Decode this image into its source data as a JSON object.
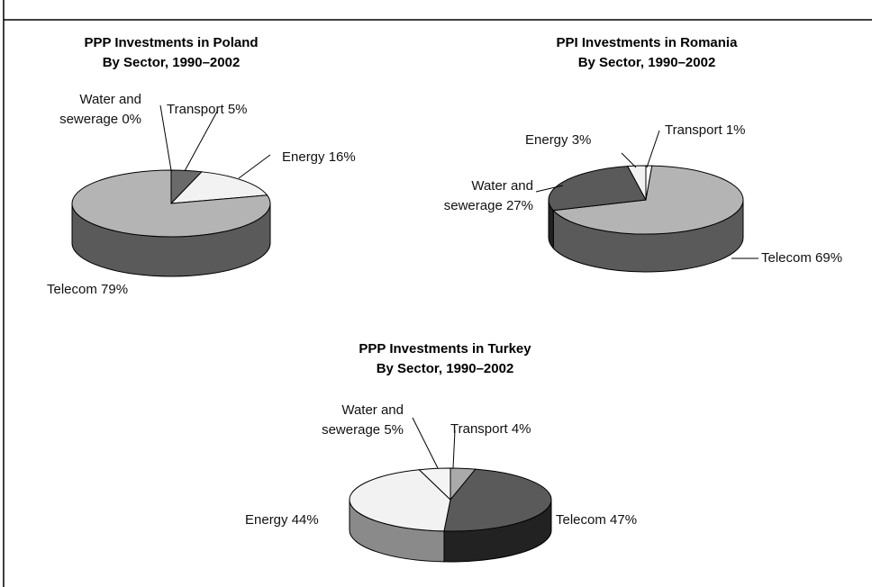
{
  "chart_data": [
    {
      "type": "pie",
      "title": "PPP Investments in Poland",
      "subtitle": "By Sector, 1990–2002",
      "categories": [
        "Water and sewerage",
        "Transport",
        "Energy",
        "Telecom"
      ],
      "values": [
        0,
        5,
        16,
        79
      ],
      "value_labels": [
        "0%",
        "5%",
        "16%",
        "79%"
      ],
      "colors": [
        "#f4f4f4",
        "#6a6a6a",
        "#f2f2f2",
        "#b4b4b4"
      ],
      "side_colors": [
        "#cccccc",
        "#444444",
        "#cfcfcf",
        "#5a5a5a"
      ]
    },
    {
      "type": "pie",
      "title": "PPI Investments in Romania",
      "subtitle": "By Sector, 1990–2002",
      "categories": [
        "Transport",
        "Telecom",
        "Water and sewerage",
        "Energy"
      ],
      "values": [
        1,
        69,
        27,
        3
      ],
      "value_labels": [
        "1%",
        "69%",
        "27%",
        "3%"
      ],
      "colors": [
        "#ffffff",
        "#b4b4b4",
        "#5a5a5a",
        "#f2f2f2"
      ],
      "side_colors": [
        "#dddddd",
        "#5a5a5a",
        "#222222",
        "#cfcfcf"
      ]
    },
    {
      "type": "pie",
      "title": "PPP Investments in Turkey",
      "subtitle": "By Sector, 1990–2002",
      "categories": [
        "Transport",
        "Telecom",
        "Energy",
        "Water and sewerage"
      ],
      "values": [
        4,
        47,
        44,
        5
      ],
      "value_labels": [
        "4%",
        "47%",
        "44%",
        "5%"
      ],
      "colors": [
        "#aaaaaa",
        "#5a5a5a",
        "#f2f2f2",
        "#f4f4f4"
      ],
      "side_colors": [
        "#777777",
        "#222222",
        "#8a8a8a",
        "#cccccc"
      ]
    }
  ]
}
